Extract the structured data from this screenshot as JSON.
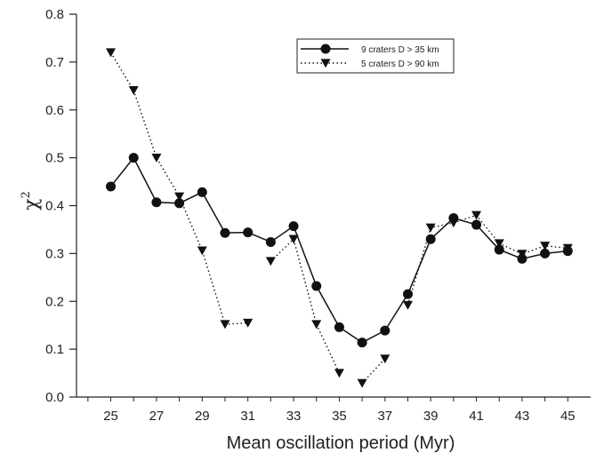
{
  "chart_data": {
    "type": "line",
    "title": "",
    "xlabel": "Mean oscillation period (Myr)",
    "ylabel": "χ",
    "ylabel_superscript": "2",
    "xlim": [
      23.5,
      46
    ],
    "ylim": [
      0,
      0.8
    ],
    "xticks": [
      25,
      27,
      29,
      31,
      33,
      35,
      37,
      39,
      41,
      43,
      45
    ],
    "yticks": [
      0.0,
      0.1,
      0.2,
      0.3,
      0.4,
      0.5,
      0.6,
      0.7,
      0.8
    ],
    "ytick_labels": [
      "0.0",
      "0.1",
      "0.2",
      "0.3",
      "0.4",
      "0.5",
      "0.6",
      "0.7",
      "0.8"
    ],
    "grid": false,
    "legend_position": "top-right",
    "series": [
      {
        "name": "9 craters D > 35 km",
        "marker": "circle",
        "line": "solid",
        "points": [
          [
            25,
            0.44
          ],
          [
            26,
            0.5
          ],
          [
            27,
            0.407
          ],
          [
            28,
            0.405
          ],
          [
            29,
            0.428
          ],
          [
            30,
            0.343
          ],
          [
            31,
            0.344
          ],
          [
            32,
            0.324
          ],
          [
            33,
            0.357
          ],
          [
            34,
            0.232
          ],
          [
            35,
            0.146
          ],
          [
            36,
            0.114
          ],
          [
            37,
            0.139
          ],
          [
            38,
            0.215
          ],
          [
            39,
            0.33
          ],
          [
            40,
            0.374
          ],
          [
            41,
            0.36
          ],
          [
            42,
            0.308
          ],
          [
            43,
            0.289
          ],
          [
            44,
            0.3
          ],
          [
            45,
            0.305
          ]
        ]
      },
      {
        "name": "5 craters D > 90 km",
        "marker": "triangle-down",
        "line": "dotted",
        "points": [
          [
            25,
            0.72
          ],
          [
            26,
            0.641
          ],
          [
            27,
            0.5
          ],
          [
            28,
            0.419
          ],
          [
            29,
            0.306
          ],
          [
            30,
            0.152
          ],
          [
            31,
            0.155
          ],
          [
            32,
            0.284
          ],
          [
            33,
            0.33
          ],
          [
            34,
            0.152
          ],
          [
            35,
            0.05
          ],
          [
            36,
            0.029
          ],
          [
            37,
            0.08
          ],
          [
            38,
            0.192
          ],
          [
            39,
            0.354
          ],
          [
            40,
            0.364
          ],
          [
            41,
            0.38
          ],
          [
            42,
            0.321
          ],
          [
            43,
            0.299
          ],
          [
            44,
            0.316
          ],
          [
            45,
            0.311
          ]
        ],
        "segments": [
          [
            0,
            6
          ],
          [
            7,
            10
          ],
          [
            11,
            12
          ],
          [
            13,
            20
          ]
        ]
      }
    ]
  }
}
